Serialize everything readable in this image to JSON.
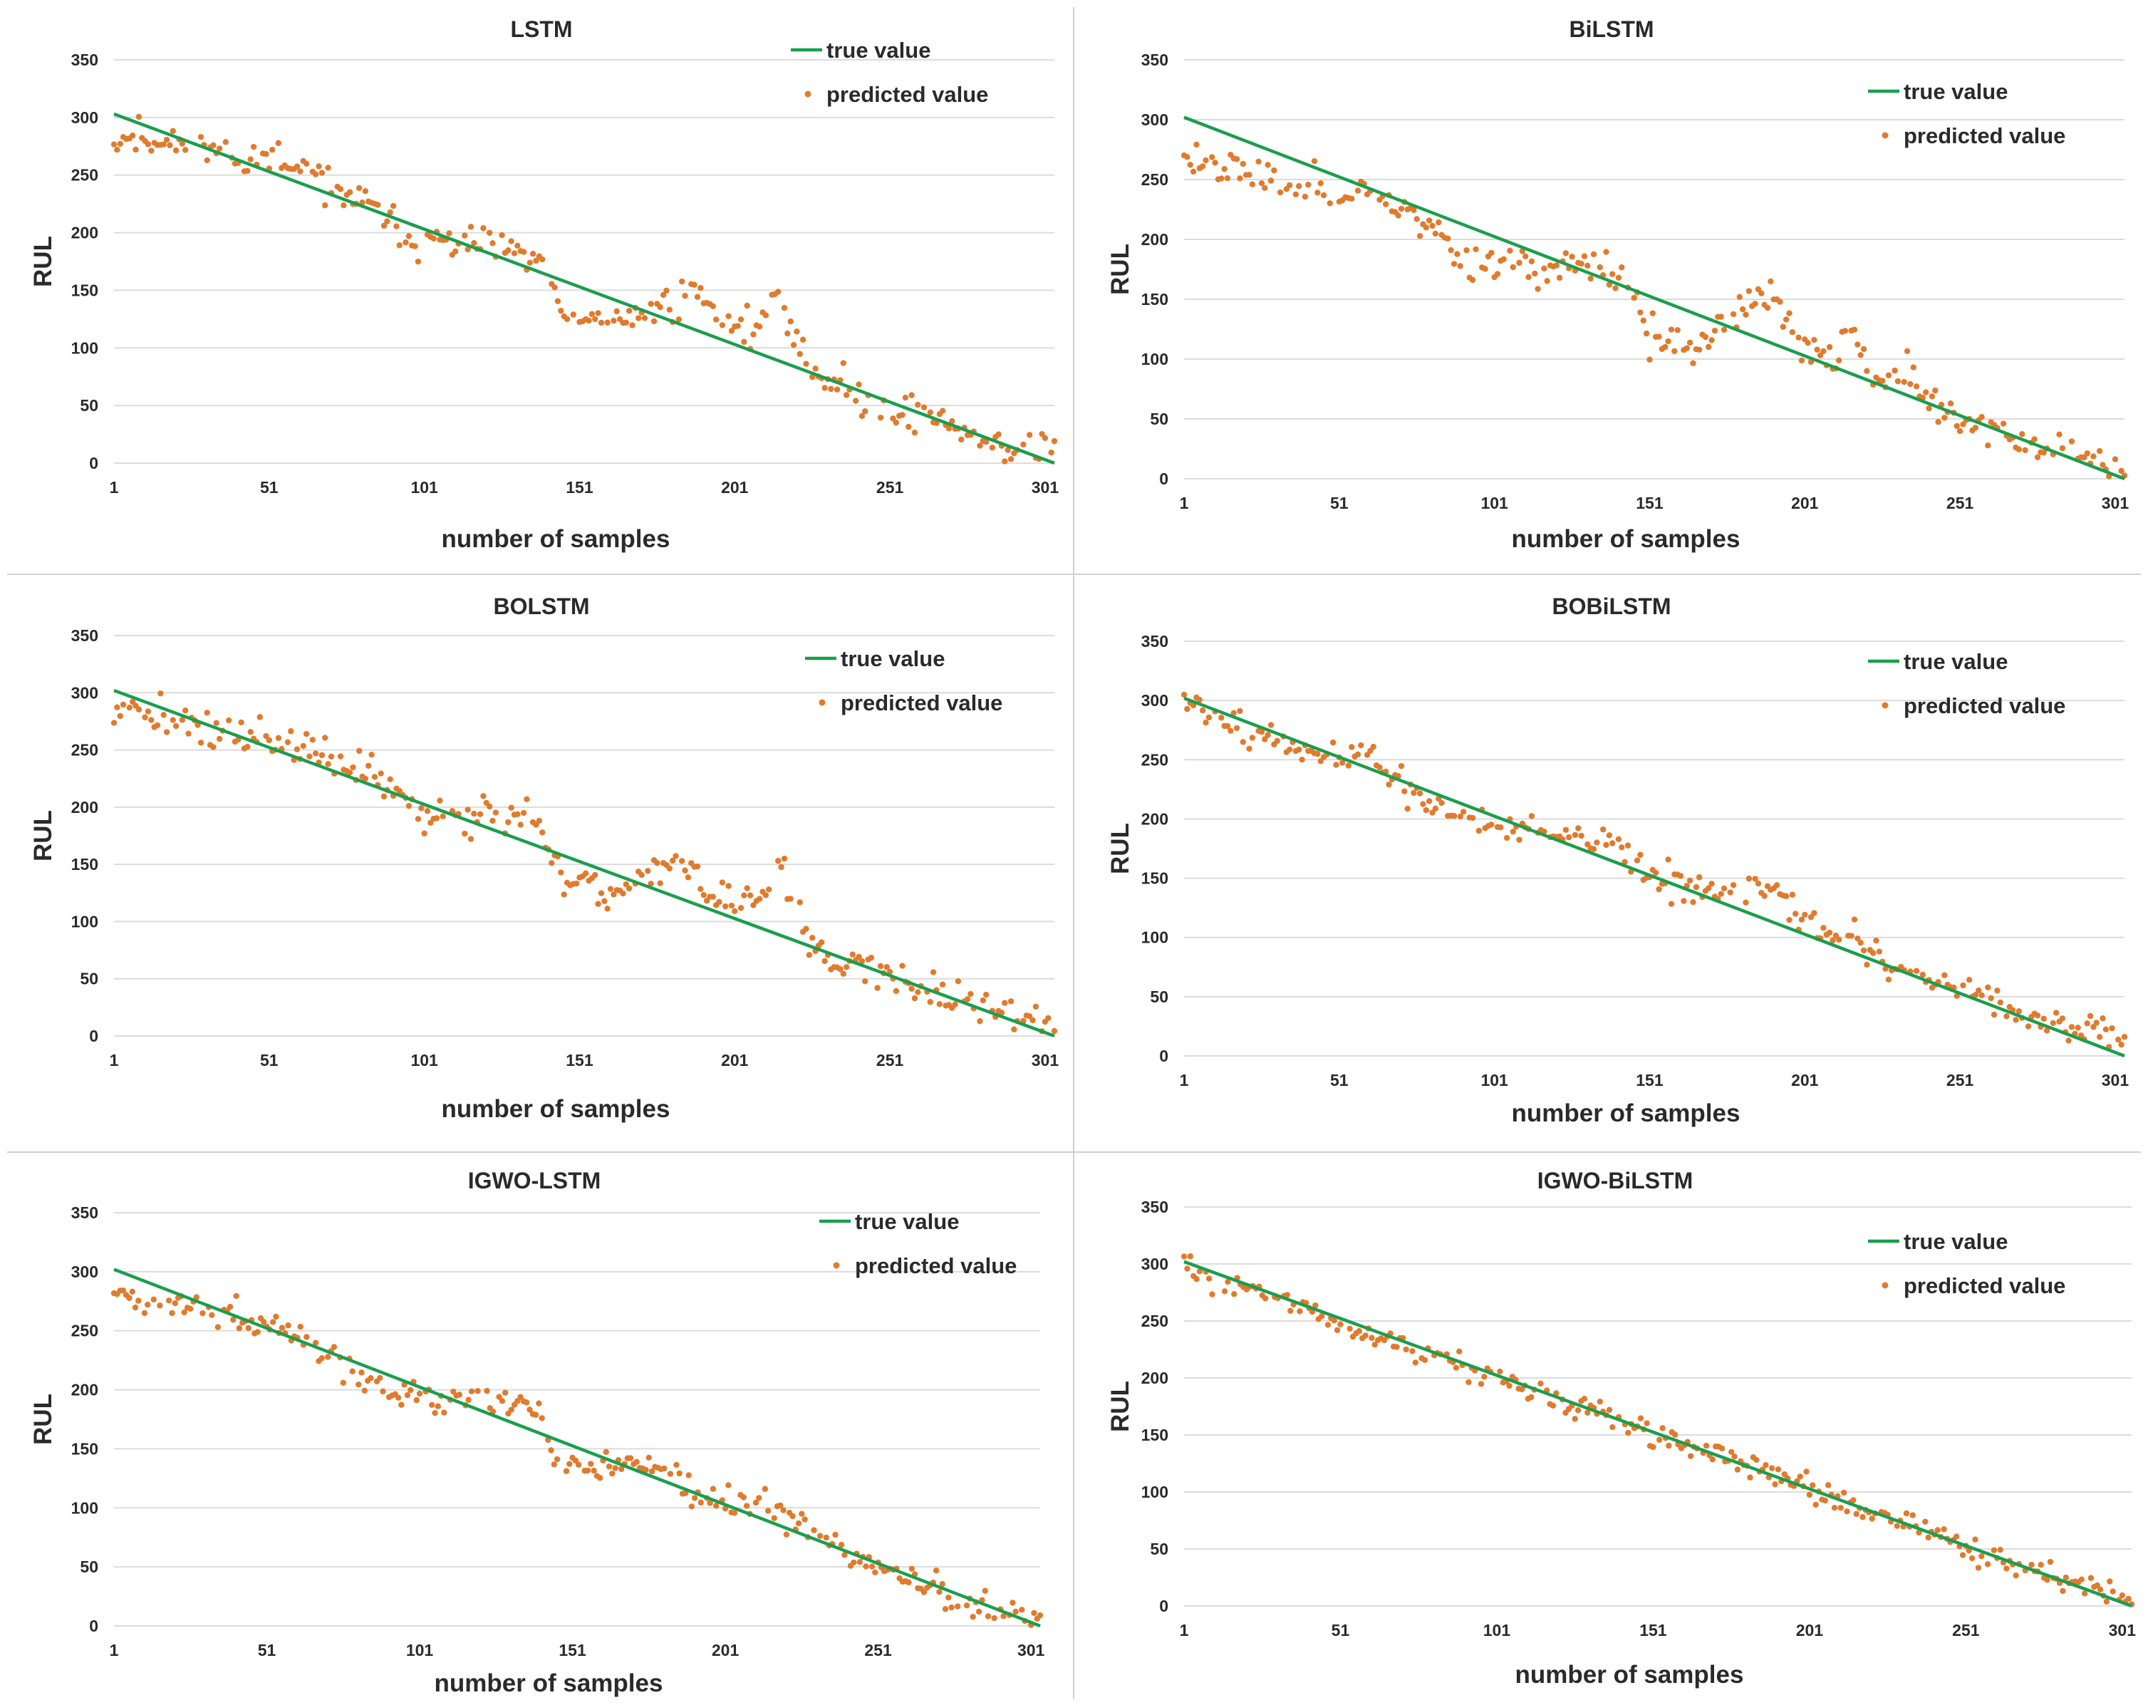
{
  "colors": {
    "true_line": "#1a9e4e",
    "predicted_point": "#e07b2e",
    "grid": "#dcdcdc",
    "text": "#2a2a2a"
  },
  "chart_data": [
    {
      "type": "scatter",
      "title": "LSTM",
      "xlabel": "number of samples",
      "ylabel": "RUL",
      "ylim": [
        0,
        350
      ],
      "xlim": [
        1,
        304
      ],
      "y_ticks": [
        "350",
        "300",
        "250",
        "200",
        "150",
        "100",
        "50",
        "0"
      ],
      "x_ticks": [
        "1",
        "51",
        "101",
        "151",
        "201",
        "251",
        "301"
      ],
      "legend": {
        "true_label": "true value",
        "pred_label": "predicted value",
        "position": "top-right"
      },
      "true_value": {
        "x": [
          1,
          304
        ],
        "y": [
          303,
          0
        ]
      },
      "predicted_profile": {
        "x": [
          1,
          20,
          40,
          60,
          80,
          100,
          120,
          140,
          145,
          160,
          170,
          180,
          190,
          200,
          210,
          215,
          220,
          230,
          250,
          270,
          280,
          290,
          304
        ],
        "y": [
          285,
          278,
          268,
          255,
          228,
          190,
          190,
          172,
          125,
          120,
          130,
          140,
          145,
          120,
          115,
          150,
          110,
          72,
          48,
          35,
          22,
          12,
          10
        ]
      },
      "predicted_noise": 12,
      "seed": 11
    },
    {
      "type": "scatter",
      "title": "BiLSTM",
      "xlabel": "number of samples",
      "ylabel": "RUL",
      "ylim": [
        0,
        350
      ],
      "xlim": [
        1,
        304
      ],
      "y_ticks": [
        "350",
        "300",
        "250",
        "200",
        "150",
        "100",
        "50",
        "0"
      ],
      "x_ticks": [
        "1",
        "51",
        "101",
        "151",
        "201",
        "251",
        "301"
      ],
      "legend": {
        "true_label": "true value",
        "pred_label": "predicted value",
        "position": "top-right"
      },
      "true_value": {
        "x": [
          1,
          304
        ],
        "y": [
          302,
          0
        ]
      },
      "predicted_profile": {
        "x": [
          1,
          15,
          30,
          50,
          60,
          80,
          90,
          110,
          130,
          145,
          150,
          165,
          180,
          190,
          200,
          210,
          215,
          225,
          235,
          245,
          260,
          280,
          304
        ],
        "y": [
          268,
          265,
          245,
          242,
          240,
          215,
          185,
          178,
          178,
          165,
          120,
          110,
          140,
          155,
          110,
          95,
          130,
          75,
          88,
          55,
          42,
          22,
          10
        ]
      },
      "predicted_noise": 11,
      "seed": 23
    },
    {
      "type": "scatter",
      "title": "BOLSTM",
      "xlabel": "number of samples",
      "ylabel": "RUL",
      "ylim": [
        0,
        350
      ],
      "xlim": [
        1,
        304
      ],
      "y_ticks": [
        "350",
        "300",
        "250",
        "200",
        "150",
        "100",
        "50",
        "0"
      ],
      "x_ticks": [
        "1",
        "51",
        "101",
        "151",
        "201",
        "251",
        "301"
      ],
      "legend": {
        "true_label": "true value",
        "pred_label": "predicted value",
        "position": "top-right"
      },
      "true_value": {
        "x": [
          1,
          304
        ],
        "y": [
          302,
          0
        ]
      },
      "predicted_profile": {
        "x": [
          1,
          20,
          40,
          60,
          80,
          100,
          120,
          135,
          145,
          160,
          170,
          185,
          200,
          210,
          215,
          220,
          230,
          250,
          270,
          290,
          304
        ],
        "y": [
          290,
          275,
          262,
          252,
          232,
          195,
          195,
          195,
          135,
          125,
          140,
          150,
          110,
          115,
          160,
          110,
          70,
          55,
          35,
          20,
          10
        ]
      },
      "predicted_noise": 12,
      "seed": 37
    },
    {
      "type": "scatter",
      "title": "BOBiLSTM",
      "xlabel": "number of samples",
      "ylabel": "RUL",
      "ylim": [
        0,
        350
      ],
      "xlim": [
        1,
        304
      ],
      "y_ticks": [
        "350",
        "300",
        "250",
        "200",
        "150",
        "100",
        "50",
        "0"
      ],
      "x_ticks": [
        "1",
        "51",
        "101",
        "151",
        "201",
        "251",
        "301"
      ],
      "legend": {
        "true_label": "true value",
        "pred_label": "predicted value",
        "position": "top-right"
      },
      "true_value": {
        "x": [
          1,
          304
        ],
        "y": [
          302,
          0
        ]
      },
      "predicted_profile": {
        "x": [
          1,
          20,
          40,
          60,
          80,
          100,
          120,
          140,
          150,
          170,
          185,
          200,
          215,
          230,
          250,
          270,
          285,
          295,
          304
        ],
        "y": [
          298,
          278,
          255,
          255,
          215,
          190,
          190,
          180,
          150,
          135,
          145,
          115,
          105,
          72,
          58,
          35,
          20,
          25,
          15
        ]
      },
      "predicted_noise": 10,
      "seed": 51
    },
    {
      "type": "scatter",
      "title": "IGWO-LSTM",
      "xlabel": "number of samples",
      "ylabel": "RUL",
      "ylim": [
        0,
        350
      ],
      "xlim": [
        1,
        304
      ],
      "y_ticks": [
        "350",
        "300",
        "250",
        "200",
        "150",
        "100",
        "50",
        "0"
      ],
      "x_ticks": [
        "1",
        "51",
        "101",
        "151",
        "201",
        "251",
        "301"
      ],
      "legend": {
        "true_label": "true value",
        "pred_label": "predicted value",
        "position": "top-right"
      },
      "true_value": {
        "x": [
          1,
          304
        ],
        "y": [
          302,
          0
        ]
      },
      "predicted_profile": {
        "x": [
          1,
          20,
          40,
          60,
          80,
          100,
          120,
          140,
          145,
          160,
          175,
          190,
          205,
          220,
          240,
          260,
          280,
          304
        ],
        "y": [
          290,
          270,
          262,
          248,
          215,
          195,
          195,
          182,
          140,
          130,
          135,
          115,
          110,
          95,
          65,
          45,
          20,
          10
        ]
      },
      "predicted_noise": 9,
      "seed": 67
    },
    {
      "type": "scatter",
      "title": "IGWO-BiLSTM",
      "xlabel": "number of samples",
      "ylabel": "RUL",
      "ylim": [
        0,
        350
      ],
      "xlim": [
        1,
        304
      ],
      "y_ticks": [
        "350",
        "300",
        "250",
        "200",
        "150",
        "100",
        "50",
        "0"
      ],
      "x_ticks": [
        "1",
        "51",
        "101",
        "151",
        "201",
        "251",
        "301"
      ],
      "legend": {
        "true_label": "true value",
        "pred_label": "predicted value",
        "position": "top-right"
      },
      "true_value": {
        "x": [
          1,
          304
        ],
        "y": [
          302,
          0
        ]
      },
      "predicted_profile": {
        "x": [
          1,
          50,
          100,
          150,
          200,
          250,
          304
        ],
        "y": [
          298,
          250,
          200,
          152,
          105,
          52,
          5
        ]
      },
      "predicted_noise": 8,
      "seed": 83
    }
  ]
}
